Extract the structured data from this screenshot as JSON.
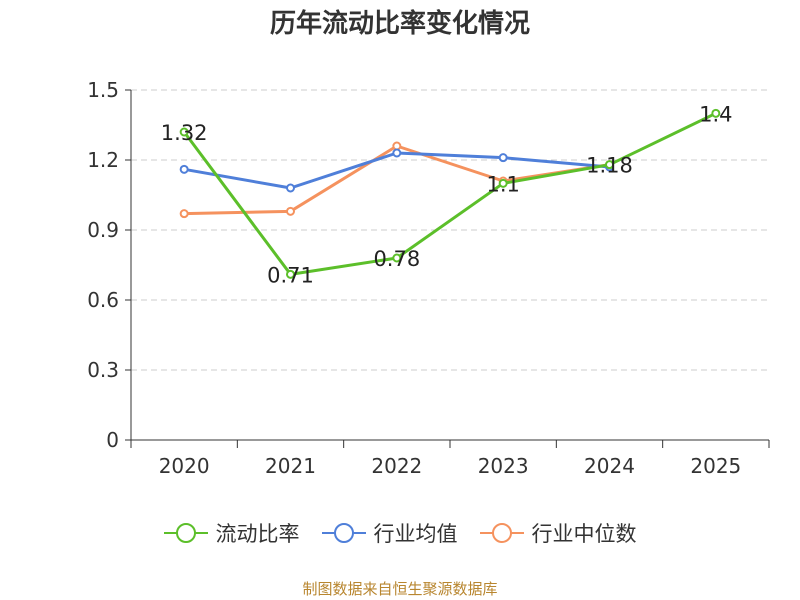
{
  "chart_data": {
    "type": "line",
    "title": "历年流动比率变化情况",
    "categories": [
      "2020",
      "2021",
      "2022",
      "2023",
      "2024",
      "2025"
    ],
    "ylim": [
      0,
      1.5
    ],
    "yticks": [
      "0",
      "0.3",
      "0.6",
      "0.9",
      "1.2",
      "1.5"
    ],
    "grid": true,
    "legend_position": "bottom",
    "series": [
      {
        "name": "流动比率",
        "color": "#5cbf2a",
        "values": [
          1.32,
          0.71,
          0.78,
          1.1,
          1.18,
          1.4
        ],
        "labels": [
          "1.32",
          "0.71",
          "0.78",
          "1.1",
          "1.18",
          "1.4"
        ]
      },
      {
        "name": "行业均值",
        "color": "#4f7fd9",
        "values": [
          1.16,
          1.08,
          1.23,
          1.21,
          1.17,
          null
        ]
      },
      {
        "name": "行业中位数",
        "color": "#f5925e",
        "values": [
          0.97,
          0.98,
          1.26,
          1.11,
          1.18,
          null
        ]
      }
    ]
  },
  "source": "制图数据来自恒生聚源数据库"
}
